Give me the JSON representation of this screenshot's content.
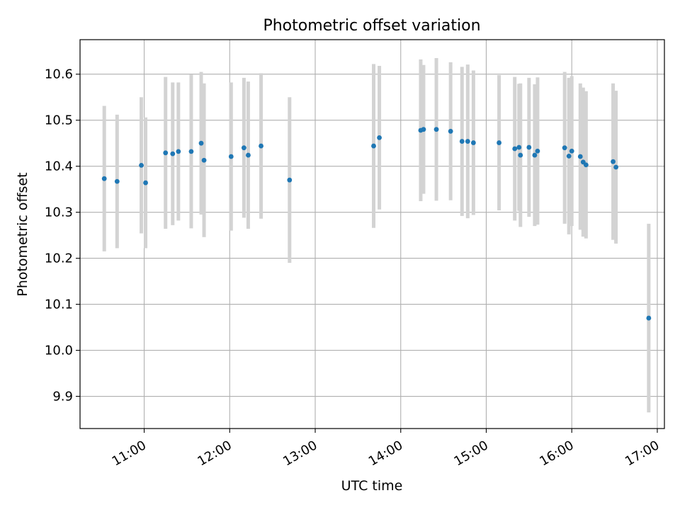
{
  "chart_data": {
    "type": "scatter",
    "title": "Photometric offset variation",
    "xlabel": "UTC time",
    "ylabel": "Photometric offset",
    "x_unit": "UTC time (hours)",
    "xlim": [
      "10:15",
      "17:05"
    ],
    "ylim": [
      9.83,
      10.675
    ],
    "x_ticks": [
      "11:00",
      "12:00",
      "13:00",
      "14:00",
      "15:00",
      "16:00",
      "17:00"
    ],
    "y_ticks": [
      "9.9",
      "10.0",
      "10.1",
      "10.2",
      "10.3",
      "10.4",
      "10.5",
      "10.6"
    ],
    "grid": true,
    "marker_color": "#1f77b4",
    "errorbar_color": "#d3d3d3",
    "points": [
      {
        "x": "10:32",
        "y": 10.373,
        "err": 0.158
      },
      {
        "x": "10:41",
        "y": 10.367,
        "err": 0.145
      },
      {
        "x": "10:58",
        "y": 10.402,
        "err": 0.148
      },
      {
        "x": "11:01",
        "y": 10.364,
        "err": 0.142
      },
      {
        "x": "11:15",
        "y": 10.429,
        "err": 0.165
      },
      {
        "x": "11:20",
        "y": 10.427,
        "err": 0.155
      },
      {
        "x": "11:24",
        "y": 10.432,
        "err": 0.15
      },
      {
        "x": "11:33",
        "y": 10.432,
        "err": 0.167
      },
      {
        "x": "11:40",
        "y": 10.45,
        "err": 0.155
      },
      {
        "x": "11:42",
        "y": 10.413,
        "err": 0.167
      },
      {
        "x": "12:01",
        "y": 10.421,
        "err": 0.161
      },
      {
        "x": "12:10",
        "y": 10.44,
        "err": 0.152
      },
      {
        "x": "12:13",
        "y": 10.424,
        "err": 0.16
      },
      {
        "x": "12:22",
        "y": 10.444,
        "err": 0.158
      },
      {
        "x": "12:42",
        "y": 10.37,
        "err": 0.18
      },
      {
        "x": "13:41",
        "y": 10.444,
        "err": 0.178
      },
      {
        "x": "13:45",
        "y": 10.462,
        "err": 0.156
      },
      {
        "x": "14:14",
        "y": 10.478,
        "err": 0.154
      },
      {
        "x": "14:16",
        "y": 10.48,
        "err": 0.14
      },
      {
        "x": "14:25",
        "y": 10.48,
        "err": 0.155
      },
      {
        "x": "14:35",
        "y": 10.476,
        "err": 0.15
      },
      {
        "x": "14:43",
        "y": 10.454,
        "err": 0.162
      },
      {
        "x": "14:47",
        "y": 10.454,
        "err": 0.167
      },
      {
        "x": "14:51",
        "y": 10.451,
        "err": 0.157
      },
      {
        "x": "15:09",
        "y": 10.451,
        "err": 0.147
      },
      {
        "x": "15:20",
        "y": 10.438,
        "err": 0.156
      },
      {
        "x": "15:23",
        "y": 10.441,
        "err": 0.138
      },
      {
        "x": "15:24",
        "y": 10.424,
        "err": 0.156
      },
      {
        "x": "15:30",
        "y": 10.441,
        "err": 0.151
      },
      {
        "x": "15:34",
        "y": 10.424,
        "err": 0.154
      },
      {
        "x": "15:36",
        "y": 10.433,
        "err": 0.16
      },
      {
        "x": "15:55",
        "y": 10.44,
        "err": 0.165
      },
      {
        "x": "15:58",
        "y": 10.422,
        "err": 0.17
      },
      {
        "x": "16:00",
        "y": 10.433,
        "err": 0.163
      },
      {
        "x": "16:06",
        "y": 10.421,
        "err": 0.159
      },
      {
        "x": "16:08",
        "y": 10.409,
        "err": 0.162
      },
      {
        "x": "16:10",
        "y": 10.403,
        "err": 0.16
      },
      {
        "x": "16:29",
        "y": 10.41,
        "err": 0.17
      },
      {
        "x": "16:31",
        "y": 10.398,
        "err": 0.166
      },
      {
        "x": "16:54",
        "y": 10.07,
        "err": 0.205
      }
    ]
  }
}
